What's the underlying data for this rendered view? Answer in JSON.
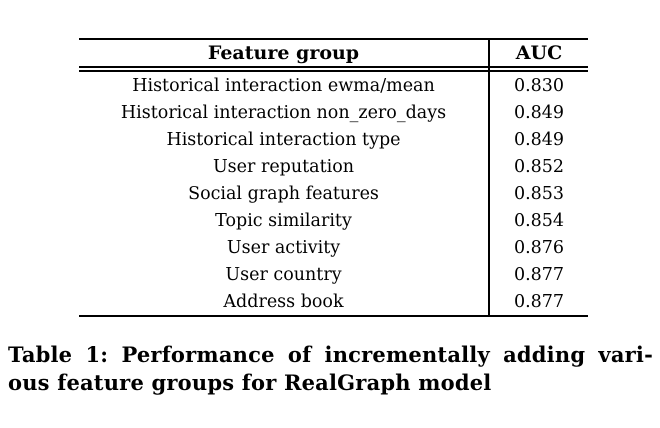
{
  "table": {
    "header": {
      "feature_group": "Feature group",
      "auc": "AUC"
    },
    "rows": [
      {
        "feature": "Historical interaction ewma/mean",
        "auc": "0.830"
      },
      {
        "feature": "Historical interaction non_zero_days",
        "auc": "0.849"
      },
      {
        "feature": "Historical interaction type",
        "auc": "0.849"
      },
      {
        "feature": "User reputation",
        "auc": "0.852"
      },
      {
        "feature": "Social graph features",
        "auc": "0.853"
      },
      {
        "feature": "Topic similarity",
        "auc": "0.854"
      },
      {
        "feature": "User activity",
        "auc": "0.876"
      },
      {
        "feature": "User country",
        "auc": "0.877"
      },
      {
        "feature": "Address book",
        "auc": "0.877"
      }
    ]
  },
  "caption": {
    "line1": "Table 1: Performance of incrementally adding vari-",
    "line2": "ous feature groups for RealGraph model"
  },
  "colors": {
    "text": "#000000",
    "background": "#ffffff",
    "rule": "#000000"
  }
}
